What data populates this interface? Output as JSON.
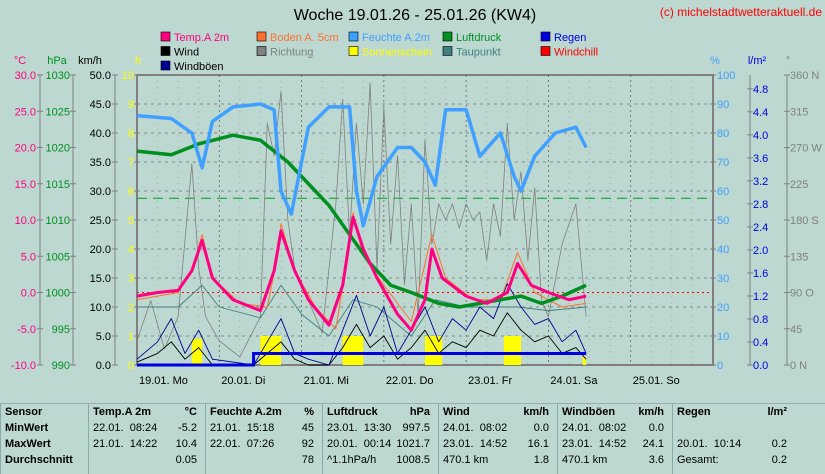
{
  "title": "Woche 19.01.26 - 25.01.26 (KW4)",
  "copyright": "(c) michelstadtwetteraktuell.de",
  "legend": [
    {
      "label": "Temp.A 2m",
      "color": "#ff0080"
    },
    {
      "label": "Boden A. 5cm",
      "color": "#ff7030"
    },
    {
      "label": "Feuchte A.2m",
      "color": "#40a0ff"
    },
    {
      "label": "Luftdruck",
      "color": "#009020"
    },
    {
      "label": "Regen",
      "color": "#0000e0"
    },
    {
      "label": "Wind",
      "color": "#000000"
    },
    {
      "label": "Richtung",
      "color": "#808080"
    },
    {
      "label": "Sonnenschein",
      "color": "#ffff00"
    },
    {
      "label": "Taupunkt",
      "color": "#408080"
    },
    {
      "label": "Windchill",
      "color": "#ff0000"
    },
    {
      "label": "Windböen",
      "color": "#000090"
    }
  ],
  "axes": {
    "temp": {
      "unit": "°C",
      "ticks": [
        "30.0",
        "25.0",
        "20.0",
        "15.0",
        "10.0",
        "5.0",
        "0.0",
        "-5.0",
        "-10.0"
      ],
      "color": "#ff0080"
    },
    "press": {
      "unit": "hPa",
      "ticks": [
        "1030",
        "1025",
        "1020",
        "1015",
        "1010",
        "1005",
        "1000",
        "995",
        "990"
      ],
      "color": "#009020"
    },
    "wind": {
      "unit": "km/h",
      "ticks": [
        "50.0",
        "45.0",
        "40.0",
        "35.0",
        "30.0",
        "25.0",
        "20.0",
        "15.0",
        "10.0",
        "5.0",
        "0.0"
      ],
      "color": "#000000"
    },
    "sun": {
      "unit": "h",
      "ticks": [
        "10",
        "9",
        "8",
        "7",
        "6",
        "5",
        "4",
        "3",
        "2",
        "1",
        "0"
      ],
      "color": "#ffff00"
    },
    "hum": {
      "unit": "%",
      "ticks": [
        "100",
        "90",
        "80",
        "70",
        "60",
        "50",
        "40",
        "30",
        "20",
        "10",
        "0"
      ],
      "color": "#40a0ff"
    },
    "rain": {
      "unit": "l/m²",
      "ticks": [
        "4.8",
        "4.4",
        "4.0",
        "3.6",
        "3.2",
        "2.8",
        "2.4",
        "2.0",
        "1.6",
        "1.2",
        "0.8",
        "0.4",
        "0.0"
      ],
      "color": "#0000e0"
    },
    "dir": {
      "unit": "°",
      "ticks": [
        "360 N",
        "315",
        "270 W",
        "225",
        "180 S",
        "135",
        "90  O",
        "45",
        "0    N"
      ],
      "color": "#808080"
    }
  },
  "days": [
    "19.01. Mo",
    "20.01. Di",
    "21.01. Mi",
    "22.01. Do",
    "23.01. Fr",
    "24.01. Sa",
    "25.01. So"
  ],
  "chart_data": {
    "type": "line",
    "x_unit": "hours since 19.01. 00:00",
    "xlim": [
      0,
      168
    ],
    "series": [
      {
        "name": "Temp.A 2m",
        "unit": "°C",
        "color": "#ff0080",
        "points": [
          [
            0,
            -0.5
          ],
          [
            6,
            0
          ],
          [
            12,
            0.3
          ],
          [
            16,
            3
          ],
          [
            19,
            7.2
          ],
          [
            22,
            2
          ],
          [
            28,
            -1
          ],
          [
            36,
            -2.5
          ],
          [
            40,
            3
          ],
          [
            42,
            8.5
          ],
          [
            46,
            3
          ],
          [
            50,
            -1
          ],
          [
            56,
            -4.5
          ],
          [
            60,
            1
          ],
          [
            63,
            10.4
          ],
          [
            66,
            6
          ],
          [
            70,
            2
          ],
          [
            76,
            -3
          ],
          [
            80,
            -5.2
          ],
          [
            84,
            -1
          ],
          [
            86,
            6
          ],
          [
            89,
            2
          ],
          [
            96,
            -0.5
          ],
          [
            102,
            -1.5
          ],
          [
            108,
            0
          ],
          [
            111,
            4
          ],
          [
            115,
            1
          ],
          [
            120,
            0
          ],
          [
            126,
            -1
          ],
          [
            131,
            -0.5
          ]
        ]
      },
      {
        "name": "Boden A. 5cm",
        "unit": "°C",
        "color": "#ff7030",
        "points": [
          [
            0,
            -1
          ],
          [
            12,
            0
          ],
          [
            16,
            3
          ],
          [
            19,
            8
          ],
          [
            22,
            2
          ],
          [
            30,
            -1.5
          ],
          [
            38,
            -2
          ],
          [
            41,
            5
          ],
          [
            42,
            9.5
          ],
          [
            46,
            3
          ],
          [
            52,
            -2
          ],
          [
            58,
            -5
          ],
          [
            61,
            4
          ],
          [
            63,
            11
          ],
          [
            66,
            5
          ],
          [
            72,
            1
          ],
          [
            80,
            -4
          ],
          [
            86,
            8
          ],
          [
            90,
            2
          ],
          [
            98,
            -1
          ],
          [
            106,
            -1
          ],
          [
            111,
            5.5
          ],
          [
            116,
            0
          ],
          [
            124,
            -2
          ],
          [
            131,
            -1.5
          ]
        ]
      },
      {
        "name": "Feuchte A.2m",
        "unit": "%",
        "color": "#40a0ff",
        "points": [
          [
            0,
            86
          ],
          [
            10,
            85
          ],
          [
            16,
            80
          ],
          [
            19,
            68
          ],
          [
            22,
            84
          ],
          [
            28,
            89
          ],
          [
            36,
            90
          ],
          [
            40,
            88
          ],
          [
            42,
            60
          ],
          [
            45,
            52
          ],
          [
            50,
            82
          ],
          [
            56,
            89
          ],
          [
            62,
            89
          ],
          [
            64,
            60
          ],
          [
            66,
            48
          ],
          [
            70,
            65
          ],
          [
            76,
            75
          ],
          [
            80,
            75
          ],
          [
            84,
            70
          ],
          [
            87,
            62
          ],
          [
            90,
            88
          ],
          [
            96,
            88
          ],
          [
            100,
            72
          ],
          [
            106,
            80
          ],
          [
            110,
            65
          ],
          [
            112,
            60
          ],
          [
            116,
            72
          ],
          [
            122,
            80
          ],
          [
            128,
            82
          ],
          [
            131,
            75
          ]
        ]
      },
      {
        "name": "Luftdruck",
        "unit": "hPa",
        "color": "#009020",
        "points": [
          [
            0,
            1019.5
          ],
          [
            10,
            1019
          ],
          [
            18,
            1020.5
          ],
          [
            28,
            1021.7
          ],
          [
            36,
            1021
          ],
          [
            44,
            1018
          ],
          [
            50,
            1015
          ],
          [
            56,
            1012
          ],
          [
            62,
            1008
          ],
          [
            68,
            1004
          ],
          [
            74,
            1001
          ],
          [
            80,
            1000
          ],
          [
            88,
            998.5
          ],
          [
            94,
            998
          ],
          [
            100,
            998.5
          ],
          [
            106,
            999
          ],
          [
            112,
            999.5
          ],
          [
            118,
            998.5
          ],
          [
            124,
            999.5
          ],
          [
            131,
            1001
          ]
        ]
      },
      {
        "name": "Taupunkt",
        "unit": "°C",
        "color": "#408080",
        "points": [
          [
            0,
            -2
          ],
          [
            12,
            -2
          ],
          [
            19,
            1
          ],
          [
            24,
            -2
          ],
          [
            36,
            -3.5
          ],
          [
            42,
            1
          ],
          [
            48,
            -3
          ],
          [
            56,
            -6
          ],
          [
            63,
            -1
          ],
          [
            70,
            -2
          ],
          [
            80,
            -6
          ],
          [
            87,
            -1
          ],
          [
            96,
            -2
          ],
          [
            111,
            -2
          ],
          [
            120,
            -2.5
          ],
          [
            131,
            -2
          ]
        ]
      },
      {
        "name": "Wind",
        "unit": "km/h",
        "color": "#000000",
        "points": [
          [
            0,
            0.5
          ],
          [
            6,
            2
          ],
          [
            10,
            4
          ],
          [
            14,
            1
          ],
          [
            18,
            3
          ],
          [
            22,
            0
          ],
          [
            34,
            0
          ],
          [
            38,
            2
          ],
          [
            42,
            4
          ],
          [
            46,
            1
          ],
          [
            50,
            0
          ],
          [
            56,
            0
          ],
          [
            60,
            3
          ],
          [
            64,
            7
          ],
          [
            68,
            3
          ],
          [
            72,
            5
          ],
          [
            76,
            1
          ],
          [
            80,
            3
          ],
          [
            84,
            6
          ],
          [
            88,
            2
          ],
          [
            92,
            4
          ],
          [
            96,
            3
          ],
          [
            100,
            6
          ],
          [
            104,
            5
          ],
          [
            108,
            9
          ],
          [
            112,
            6
          ],
          [
            116,
            4
          ],
          [
            120,
            5
          ],
          [
            124,
            2
          ],
          [
            128,
            3
          ],
          [
            131,
            1
          ]
        ]
      },
      {
        "name": "Windböen",
        "unit": "km/h",
        "color": "#000090",
        "points": [
          [
            0,
            1
          ],
          [
            6,
            4
          ],
          [
            10,
            8
          ],
          [
            14,
            2
          ],
          [
            18,
            6
          ],
          [
            22,
            1
          ],
          [
            34,
            0
          ],
          [
            38,
            4
          ],
          [
            42,
            8
          ],
          [
            46,
            2
          ],
          [
            50,
            1
          ],
          [
            56,
            0
          ],
          [
            60,
            6
          ],
          [
            64,
            12
          ],
          [
            68,
            5
          ],
          [
            72,
            10
          ],
          [
            76,
            2
          ],
          [
            80,
            6
          ],
          [
            84,
            10
          ],
          [
            88,
            4
          ],
          [
            92,
            8
          ],
          [
            96,
            6
          ],
          [
            100,
            10
          ],
          [
            104,
            8
          ],
          [
            108,
            14
          ],
          [
            112,
            10
          ],
          [
            116,
            7
          ],
          [
            120,
            8
          ],
          [
            124,
            4
          ],
          [
            128,
            6
          ],
          [
            131,
            2
          ]
        ]
      },
      {
        "name": "Richtung",
        "unit": "°",
        "color": "#808080",
        "points": [
          [
            0,
            30
          ],
          [
            4,
            80
          ],
          [
            8,
            20
          ],
          [
            12,
            60
          ],
          [
            16,
            250
          ],
          [
            18,
            120
          ],
          [
            20,
            60
          ],
          [
            24,
            30
          ],
          [
            30,
            10
          ],
          [
            36,
            60
          ],
          [
            38,
            300
          ],
          [
            40,
            260
          ],
          [
            42,
            340
          ],
          [
            44,
            180
          ],
          [
            46,
            120
          ],
          [
            50,
            80
          ],
          [
            54,
            40
          ],
          [
            58,
            200
          ],
          [
            60,
            330
          ],
          [
            62,
            160
          ],
          [
            64,
            300
          ],
          [
            66,
            200
          ],
          [
            68,
            350
          ],
          [
            70,
            120
          ],
          [
            72,
            320
          ],
          [
            74,
            150
          ],
          [
            76,
            260
          ],
          [
            78,
            100
          ],
          [
            80,
            200
          ],
          [
            82,
            60
          ],
          [
            84,
            280
          ],
          [
            86,
            150
          ],
          [
            88,
            200
          ],
          [
            90,
            180
          ],
          [
            92,
            200
          ],
          [
            94,
            170
          ],
          [
            96,
            200
          ],
          [
            98,
            180
          ],
          [
            100,
            190
          ],
          [
            102,
            130
          ],
          [
            104,
            200
          ],
          [
            106,
            160
          ],
          [
            108,
            300
          ],
          [
            110,
            180
          ],
          [
            112,
            240
          ],
          [
            114,
            130
          ],
          [
            116,
            220
          ],
          [
            118,
            80
          ],
          [
            120,
            60
          ],
          [
            124,
            150
          ],
          [
            128,
            200
          ],
          [
            131,
            60
          ]
        ]
      }
    ],
    "sunshine": {
      "unit": "h",
      "bars": [
        [
          16,
          19,
          0.9
        ],
        [
          36,
          42,
          1.0
        ],
        [
          60,
          66,
          1.0
        ],
        [
          84,
          89,
          1.0
        ],
        [
          107,
          112,
          1.0
        ],
        [
          130,
          131,
          0.3
        ]
      ]
    },
    "rain_cumulative": {
      "unit": "l/m²",
      "points": [
        [
          0,
          0
        ],
        [
          34,
          0
        ],
        [
          34,
          0.2
        ],
        [
          131,
          0.2
        ]
      ]
    },
    "reference_lines": [
      {
        "axis": "press",
        "value": 1013,
        "style": "dashed",
        "color": "#00a020"
      },
      {
        "axis": "temp",
        "value": 0,
        "style": "dotted",
        "color": "#ff0000"
      }
    ]
  },
  "table": [
    {
      "name": "Sensor",
      "unit": "",
      "rows": [
        "MinWert",
        "MaxWert",
        "Durchschnitt"
      ],
      "vals": [
        "",
        "",
        ""
      ]
    },
    {
      "name": "Temp.A 2m",
      "unit": "°C",
      "rows": [
        "22.01.  08:24",
        "21.01.  14:22",
        ""
      ],
      "vals": [
        "-5.2",
        "10.4",
        "0.05"
      ]
    },
    {
      "name": "Feuchte A.2m",
      "unit": "%",
      "rows": [
        "21.01.  15:18",
        "22.01.  07:26",
        ""
      ],
      "vals": [
        "45",
        "92",
        "78"
      ]
    },
    {
      "name": "Luftdruck",
      "unit": "hPa",
      "rows": [
        "23.01.  13:30",
        "20.01.  00:14",
        "^1.1hPa/h"
      ],
      "vals": [
        "997.5",
        "1021.7",
        "1008.5"
      ]
    },
    {
      "name": "Wind",
      "unit": "km/h",
      "rows": [
        "24.01.  08:02",
        "23.01.  14:52",
        "470.1 km"
      ],
      "vals": [
        "0.0",
        "16.1",
        "1.8"
      ]
    },
    {
      "name": "Windböen",
      "unit": "km/h",
      "rows": [
        "24.01.  08:02",
        "23.01.  14:52",
        "470.1 km"
      ],
      "vals": [
        "0.0",
        "24.1",
        "3.6"
      ]
    },
    {
      "name": "Regen",
      "unit": "l/m²",
      "rows": [
        "",
        "20.01.  10:14",
        "Gesamt:"
      ],
      "vals": [
        "",
        "0.2",
        "0.2"
      ]
    }
  ]
}
